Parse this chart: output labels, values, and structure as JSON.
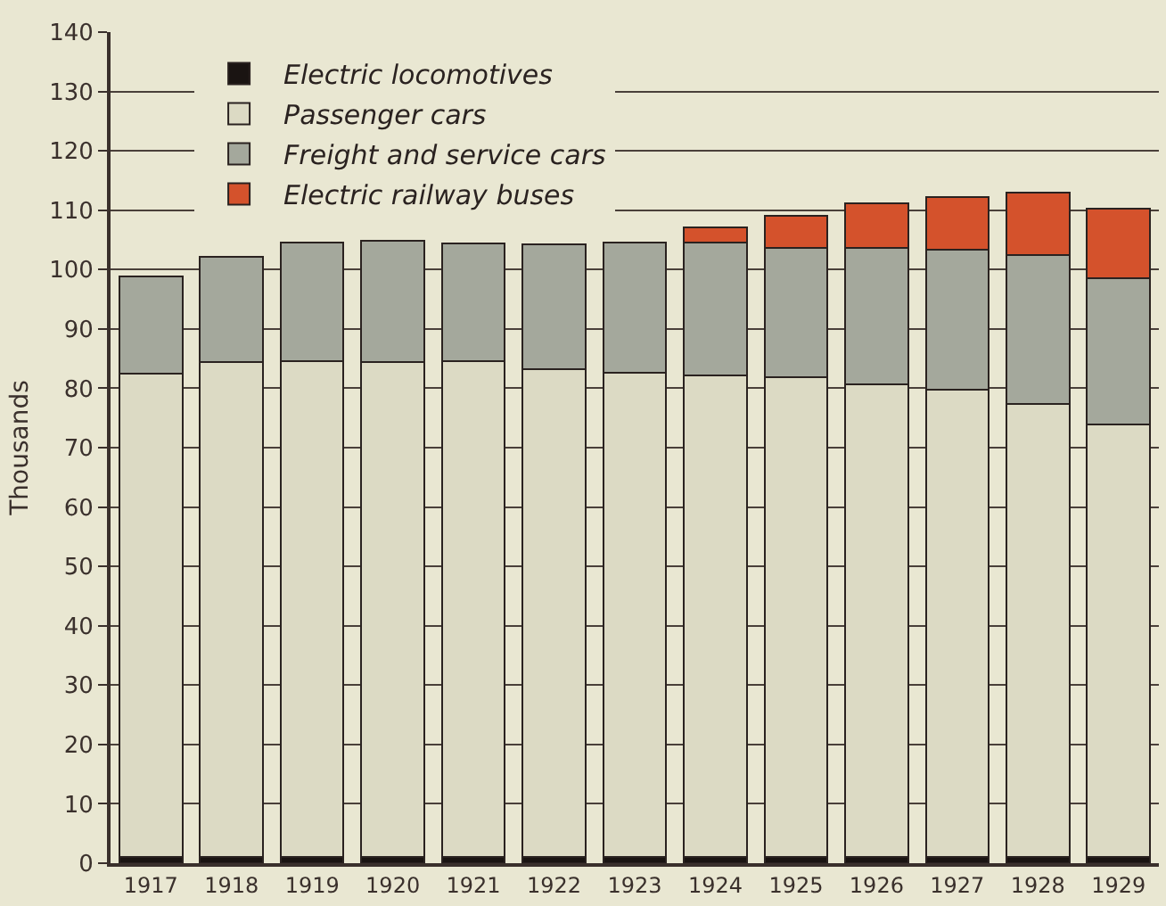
{
  "chart_data": {
    "type": "bar",
    "stacked": true,
    "ylabel": "Thousands",
    "categories": [
      "1917",
      "1918",
      "1919",
      "1920",
      "1921",
      "1922",
      "1923",
      "1924",
      "1925",
      "1926",
      "1927",
      "1928",
      "1929"
    ],
    "series": [
      {
        "name": "Electric locomotives",
        "color": "#1a1412",
        "values": [
          1,
          1,
          1,
          1,
          1,
          1,
          1,
          1,
          1,
          1,
          1,
          1,
          1
        ]
      },
      {
        "name": "Passenger cars",
        "color": "#dcdac4",
        "values": [
          81.4,
          83.4,
          83.6,
          83.4,
          83.6,
          82.2,
          81.6,
          81.2,
          80.9,
          79.6,
          78.7,
          76.4,
          72.9
        ]
      },
      {
        "name": "Freight and service cars",
        "color": "#a4a89c",
        "values": [
          16.4,
          17.7,
          19.9,
          20.5,
          19.8,
          21.0,
          21.9,
          22.3,
          21.7,
          23.0,
          23.6,
          25.1,
          24.7
        ]
      },
      {
        "name": "Electric railway buses",
        "color": "#d4522c",
        "values": [
          null,
          null,
          null,
          null,
          null,
          null,
          null,
          2.6,
          5.4,
          7.5,
          8.9,
          10.5,
          11.7
        ]
      }
    ],
    "ylim": [
      0,
      140
    ],
    "yticks": [
      0,
      10,
      20,
      30,
      40,
      50,
      60,
      70,
      80,
      90,
      100,
      110,
      120,
      130,
      140
    ],
    "grid": "y",
    "legend": "top left"
  }
}
